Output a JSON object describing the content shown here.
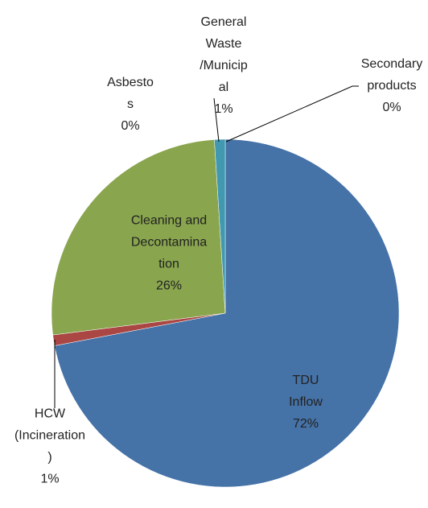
{
  "chart_data": {
    "type": "pie",
    "categories": [
      "TDU Inflow",
      "HCW (Incineration)",
      "Cleaning and Decontamination",
      "Asbestos",
      "General Waste /Municipal",
      "Secondary products"
    ],
    "values": [
      72,
      1,
      26,
      0,
      1,
      0
    ],
    "value_labels": [
      "72%",
      "1%",
      "26%",
      "0%",
      "1%",
      "0%"
    ],
    "colors": [
      "#4572a7",
      "#aa4643",
      "#89a54e",
      "#71588f",
      "#4198af",
      "#db843d"
    ]
  }
}
